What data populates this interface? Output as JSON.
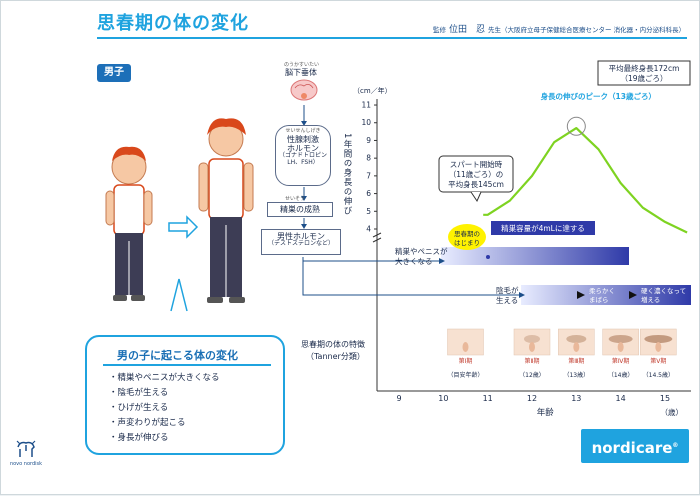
{
  "header": {
    "title": "思春期の体の変化",
    "supervisor_label": "監修",
    "supervisor_name": "位田　忍",
    "supervisor_title": "先生（大阪府立母子保健総合医療センター 消化器・内分泌科科長）"
  },
  "tag": "男子",
  "flow": {
    "pituitary_ruby": "のうかすいたい",
    "pituitary": "脳下垂体",
    "gonadotropin_ruby": "せいせんしげき",
    "gonadotropin_line1": "性腺刺激",
    "gonadotropin_line2": "ホルモン",
    "gonadotropin_line3": "（ゴナドトロピン",
    "gonadotropin_line4": "LH、FSH）",
    "testis_ruby": "せいそう",
    "testis": "精巣の成熟",
    "male_hormone_line1": "男性ホルモン",
    "male_hormone_line2": "（テストステロンなど）"
  },
  "changes": {
    "title": "男の子に起こる体の変化",
    "items": [
      "精巣やペニスが大きくなる",
      "陰毛が生える",
      "ひげが生える",
      "声変わりが起こる",
      "身長が伸びる"
    ]
  },
  "chart_data": {
    "type": "line",
    "ylabel_unit": "（cm／年）",
    "ylabel": "1年間の身長の伸び",
    "y_ticks": [
      "4",
      "5",
      "6",
      "7",
      "8",
      "9",
      "10",
      "11"
    ],
    "ylim": [
      4,
      11
    ],
    "xlabel": "年齢",
    "x_unit": "（歳）",
    "x_ticks": [
      "9",
      "10",
      "11",
      "12",
      "13",
      "14",
      "15"
    ],
    "xlim": [
      9,
      15.5
    ],
    "series": [
      {
        "x": [
          10.9,
          11.0,
          11.5,
          12.0,
          12.5,
          13.0,
          13.5,
          14.0,
          14.5,
          15.0,
          15.5
        ],
        "y": [
          4.8,
          4.8,
          5.6,
          7.0,
          8.9,
          9.7,
          8.5,
          6.6,
          5.2,
          4.4,
          3.8
        ]
      }
    ],
    "color": "#7ed321",
    "peak": {
      "x": 13.0,
      "y": 9.8
    },
    "annotations": {
      "final_height_line1": "平均最終身長172cm",
      "final_height_line2": "（19歳ごろ）",
      "peak_label": "身長の伸びのピーク（13歳ごろ）",
      "spurt_line1": "スパート開始時",
      "spurt_line2": "（11歳ごろ）の",
      "spurt_line3": "平均身長145cm",
      "puberty_line1": "思春期の",
      "puberty_line2": "はじまり",
      "testis_volume": "精巣容量が4mLに達する"
    },
    "bars": {
      "genital_line1": "精巣やペニスが",
      "genital_line2": "大きくなる",
      "pubic_line1": "陰毛が",
      "pubic_line2": "生える",
      "pubic_step2_line1": "柔らかく",
      "pubic_step2_line2": "まばら",
      "pubic_step3_line1": "硬く濃くなって",
      "pubic_step3_line2": "増える"
    },
    "tanner": {
      "label_line1": "思春期の体の特徴",
      "label_line2": "（Tanner分類）",
      "stages": [
        {
          "stage": "第Ⅰ期",
          "age": "（目安年齢）",
          "x": 10.5
        },
        {
          "stage": "第Ⅱ期",
          "age": "（12歳）",
          "x": 12.0
        },
        {
          "stage": "第Ⅲ期",
          "age": "（13歳）",
          "x": 13.0
        },
        {
          "stage": "第Ⅳ期",
          "age": "（14歳）",
          "x": 14.0
        },
        {
          "stage": "第Ⅴ期",
          "age": "（14.5歳）",
          "x": 14.85
        }
      ]
    }
  },
  "footer": {
    "brand": "novo nordisk",
    "product": "nordicare",
    "product_mark": "®"
  },
  "colors": {
    "accent": "#1fa3df",
    "navy": "#1d6fb8",
    "curve": "#7ed321",
    "bar": "#3f48b3"
  }
}
